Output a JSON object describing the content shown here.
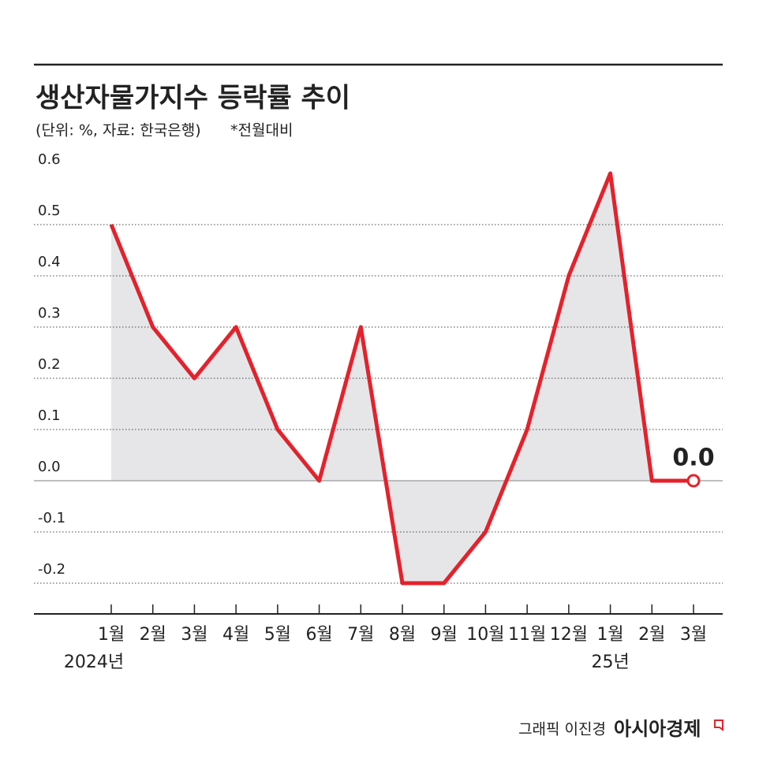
{
  "chart_data": {
    "type": "line",
    "title": "생산자물가지수 등락률 추이",
    "subtitle": "(단위: %, 자료: 한국은행)",
    "note": "*전월대비",
    "categories": [
      "1월",
      "2월",
      "3월",
      "4월",
      "5월",
      "6월",
      "7월",
      "8월",
      "9월",
      "10월",
      "11월",
      "12월",
      "1월",
      "2월",
      "3월"
    ],
    "category_sublabels": [
      "2024년",
      null,
      null,
      null,
      null,
      null,
      null,
      null,
      null,
      null,
      null,
      null,
      "25년",
      null,
      null
    ],
    "series": [
      {
        "color": "#e4222b",
        "values": [
          0.5,
          0.3,
          0.2,
          0.3,
          0.1,
          0.0,
          0.3,
          -0.2,
          -0.2,
          -0.1,
          0.1,
          0.4,
          0.6,
          0.0,
          0.0
        ],
        "value_labels": [
          null,
          null,
          null,
          null,
          null,
          null,
          null,
          null,
          null,
          null,
          null,
          null,
          null,
          null,
          "0.0"
        ]
      }
    ],
    "area_color": "#e6e6e9",
    "ylim": [
      -0.26,
      0.6
    ],
    "yticks": [
      {
        "value": 0.6,
        "label": "0.6"
      },
      {
        "value": 0.5,
        "label": "0.5"
      },
      {
        "value": 0.4,
        "label": "0.4"
      },
      {
        "value": 0.3,
        "label": "0.3"
      },
      {
        "value": 0.2,
        "label": "0.2"
      },
      {
        "value": 0.1,
        "label": "0.1"
      },
      {
        "value": 0,
        "label": "0.0"
      },
      {
        "value": -0.1,
        "label": "-0.1"
      },
      {
        "value": -0.2,
        "label": "-0.2"
      }
    ],
    "grid": true,
    "credit": "그래픽 이진경",
    "publisher": "아시아경제"
  }
}
